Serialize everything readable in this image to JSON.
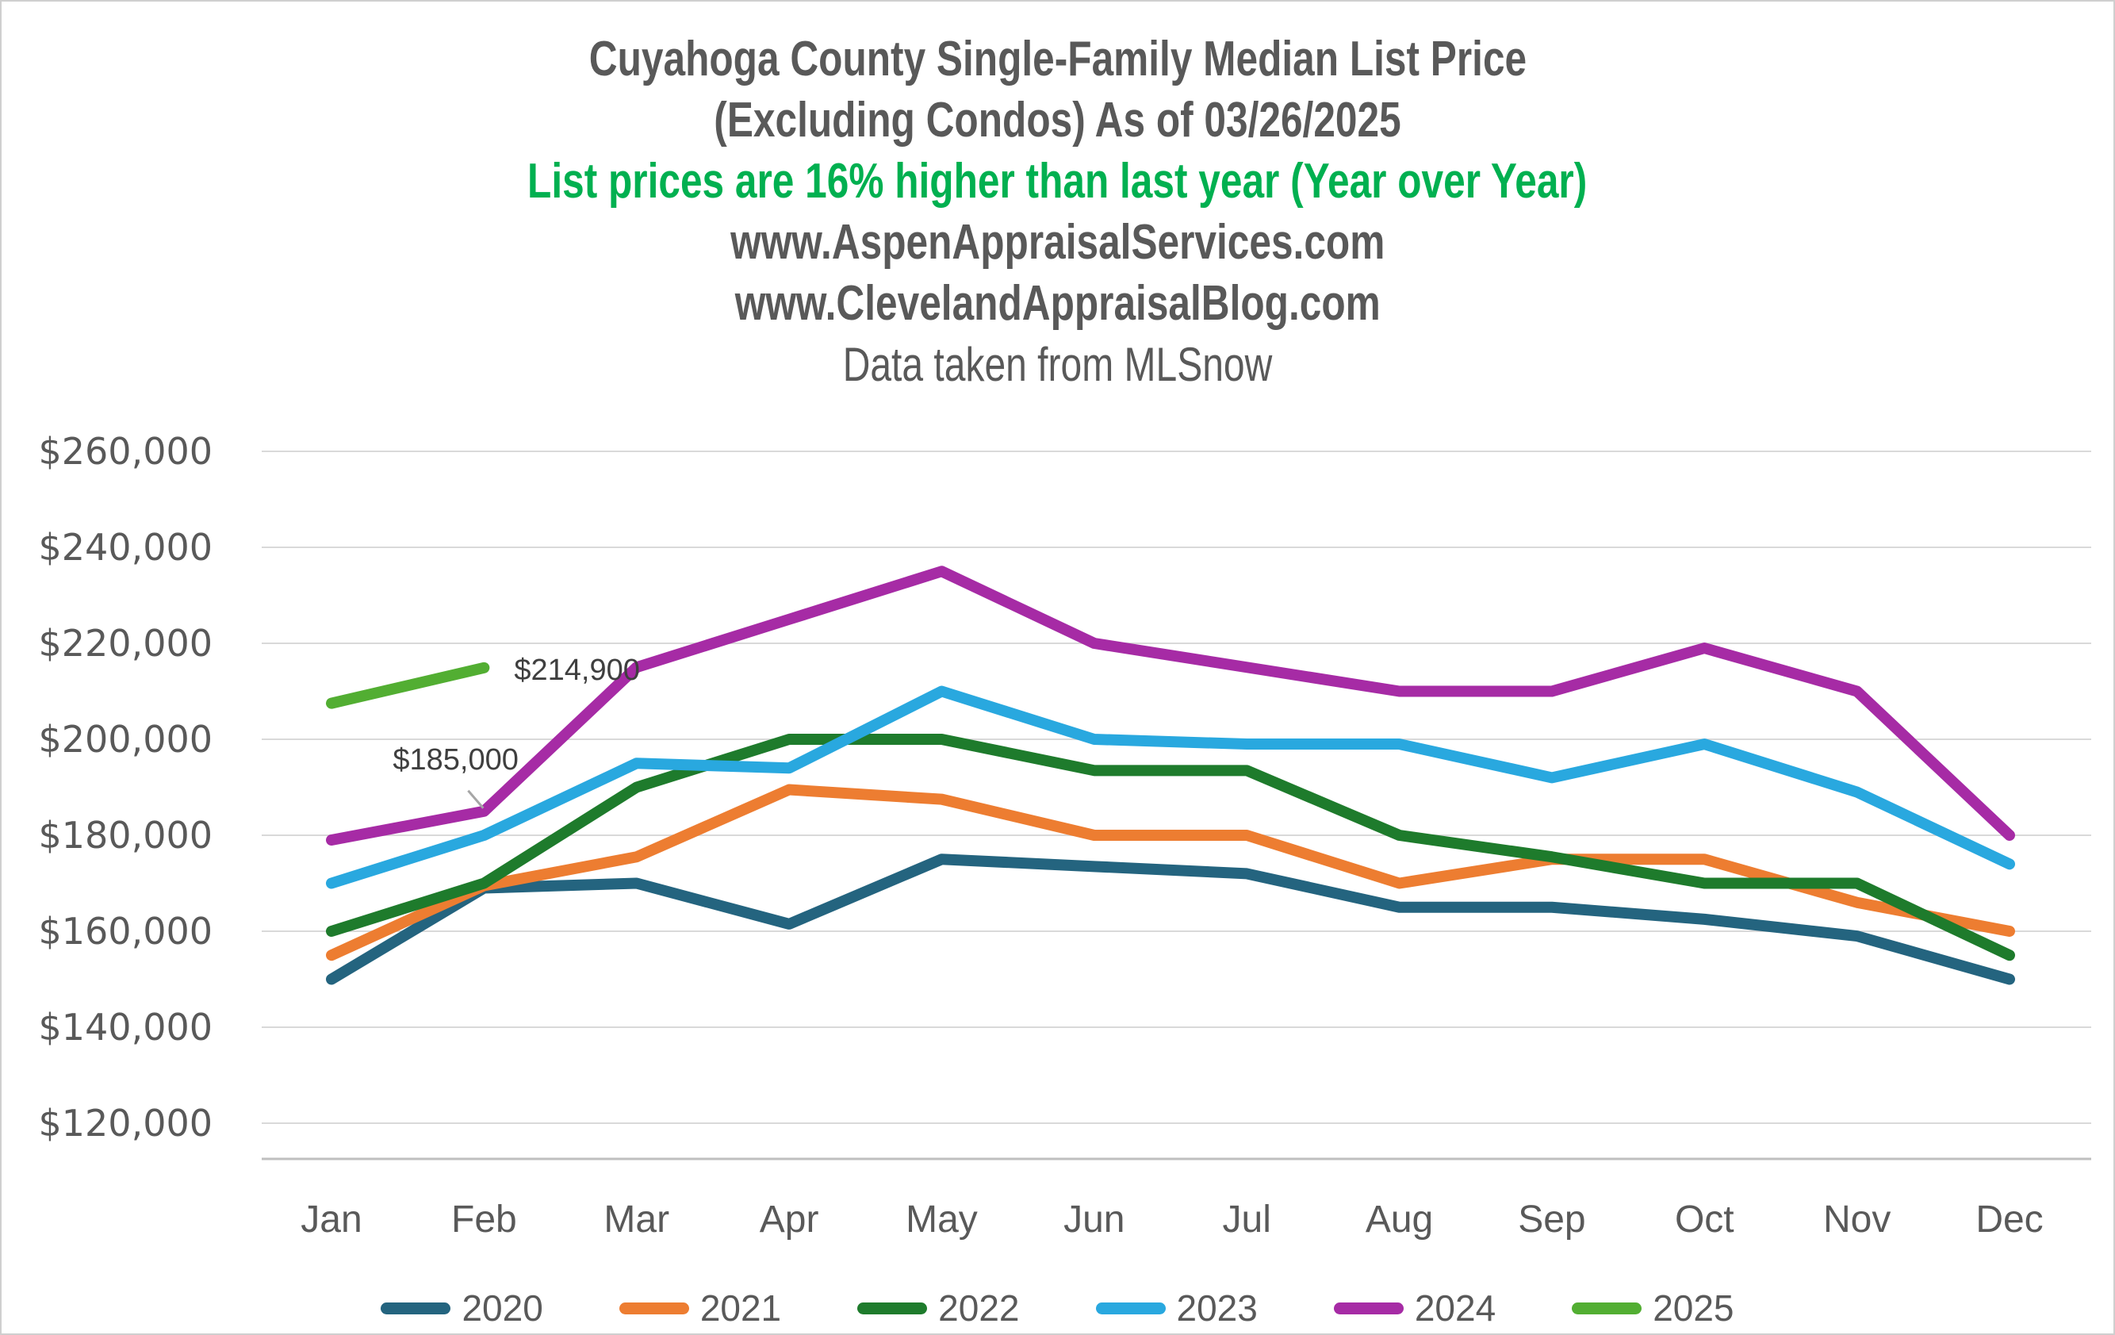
{
  "header": {
    "title_line1": "Cuyahoga County Single-Family Median List Price",
    "title_line2": "(Excluding Condos) As of 03/26/2025",
    "subtitle_highlight": "List prices are 16% higher than last year (Year over Year)",
    "url_line1": "www.AspenAppraisalServices.com",
    "url_line2": "www.ClevelandAppraisalBlog.com",
    "source_note": "Data taken from MLSnow"
  },
  "colors": {
    "title_text": "#595959",
    "subtitle_green": "#00B050",
    "axis_text": "#595959",
    "gridline": "#D9D9D9",
    "axis_line": "#BFBFBF",
    "annotation_text": "#3F3F3F",
    "leader_line": "#A6A6A6",
    "background": "#FFFFFF"
  },
  "chart_data": {
    "type": "line",
    "title": "Cuyahoga County Single-Family Median List Price (Excluding Condos) As of 03/26/2025",
    "xlabel": "",
    "ylabel": "",
    "categories": [
      "Jan",
      "Feb",
      "Mar",
      "Apr",
      "May",
      "Jun",
      "Jul",
      "Aug",
      "Sep",
      "Oct",
      "Nov",
      "Dec"
    ],
    "y_ticks": [
      120000,
      140000,
      160000,
      180000,
      200000,
      220000,
      240000,
      260000
    ],
    "ylim": [
      112000,
      268000
    ],
    "y_tick_format": "$#,##0",
    "grid": true,
    "legend_position": "bottom",
    "series": [
      {
        "name": "2020",
        "color": "#24647F",
        "values": [
          150000,
          169000,
          170000,
          161500,
          175000,
          173500,
          172000,
          165000,
          165000,
          162500,
          159000,
          150000
        ]
      },
      {
        "name": "2021",
        "color": "#ED7D31",
        "values": [
          155000,
          169500,
          175500,
          189500,
          187500,
          180000,
          180000,
          170000,
          175000,
          175000,
          166000,
          160000
        ]
      },
      {
        "name": "2022",
        "color": "#1E7B2C",
        "values": [
          160000,
          170000,
          190000,
          200000,
          200000,
          193500,
          193500,
          180000,
          175500,
          170000,
          170000,
          155000
        ]
      },
      {
        "name": "2023",
        "color": "#29A8DF",
        "values": [
          170000,
          180000,
          195000,
          194000,
          210000,
          200000,
          199000,
          199000,
          192000,
          199000,
          189000,
          174000
        ]
      },
      {
        "name": "2024",
        "color": "#A62BA5",
        "values": [
          179000,
          185000,
          215000,
          225000,
          235000,
          220000,
          215000,
          210000,
          210000,
          219000,
          210000,
          180000
        ]
      },
      {
        "name": "2025",
        "color": "#52AE32",
        "values": [
          207500,
          214900,
          null,
          null,
          null,
          null,
          null,
          null,
          null,
          null,
          null,
          null
        ]
      }
    ],
    "annotations": [
      {
        "text": "$214,900",
        "series": "2025",
        "month": "Feb",
        "placement": "right-of-point"
      },
      {
        "text": "$185,000",
        "series": "2024",
        "month": "Feb",
        "placement": "above-left-with-leader"
      }
    ]
  }
}
